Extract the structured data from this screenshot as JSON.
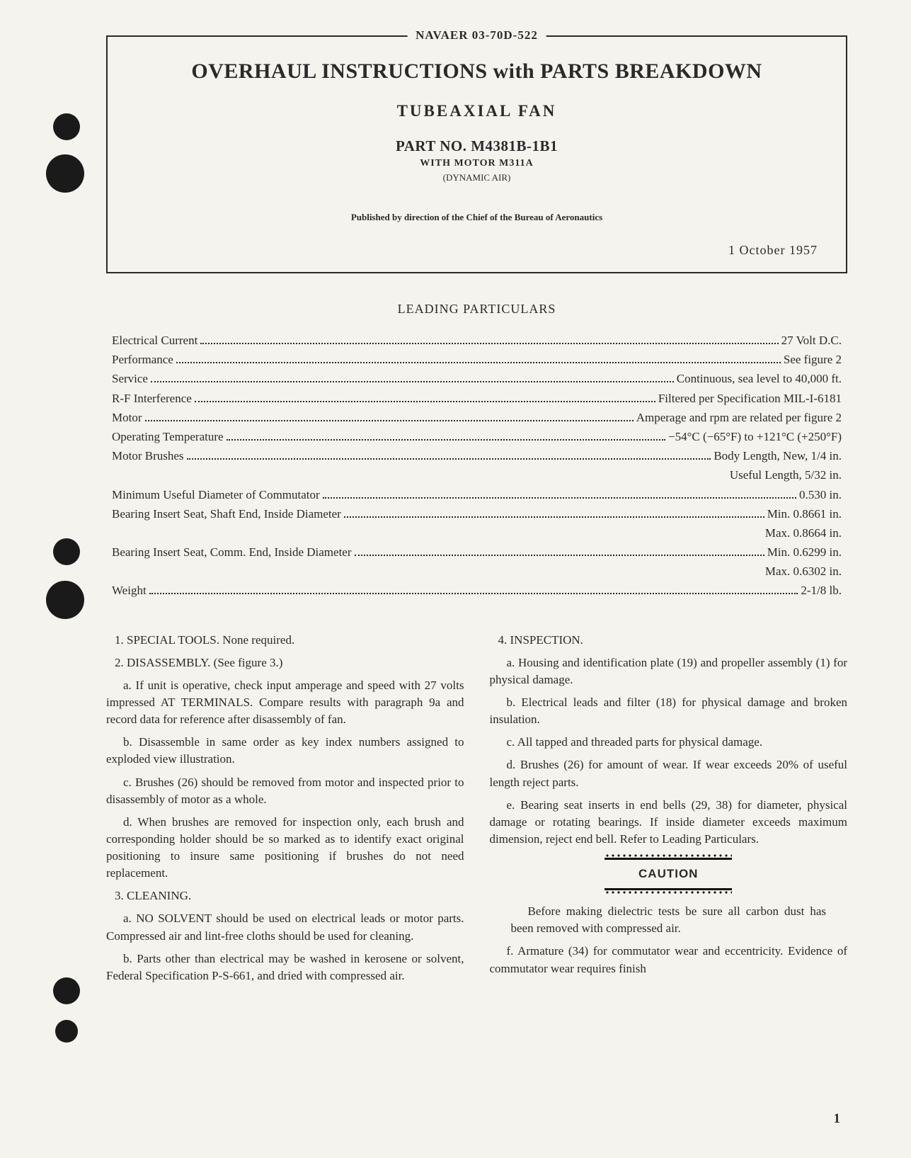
{
  "header": {
    "doc_id": "NAVAER 03-70D-522",
    "title": "OVERHAUL INSTRUCTIONS with PARTS BREAKDOWN",
    "subtitle": "TUBEAXIAL FAN",
    "part_no": "PART NO. M4381B-1B1",
    "with_motor": "WITH MOTOR M311A",
    "manufacturer": "(DYNAMIC AIR)",
    "published": "Published by direction of the Chief of the Bureau of Aeronautics",
    "date": "1 October 1957"
  },
  "particulars": {
    "heading": "LEADING PARTICULARS",
    "rows": [
      {
        "label": "Electrical Current",
        "value": "27 Volt D.C."
      },
      {
        "label": "Performance",
        "value": "See figure 2"
      },
      {
        "label": "Service",
        "value": "Continuous, sea level to 40,000 ft."
      },
      {
        "label": "R-F Interference",
        "value": "Filtered per Specification MIL-I-6181"
      },
      {
        "label": "Motor",
        "value": "Amperage and rpm are related per figure 2"
      },
      {
        "label": "Operating Temperature",
        "value": "−54°C (−65°F) to +121°C (+250°F)"
      },
      {
        "label": "Motor Brushes",
        "value": "Body Length, New, 1/4 in."
      },
      {
        "label": "",
        "value": "Useful Length, 5/32 in.",
        "indent": true
      },
      {
        "label": "Minimum Useful Diameter of Commutator",
        "value": "0.530 in."
      },
      {
        "label": "Bearing Insert Seat, Shaft End, Inside Diameter",
        "value": "Min. 0.8661 in."
      },
      {
        "label": "",
        "value": "Max. 0.8664 in.",
        "indent": true
      },
      {
        "label": "Bearing Insert Seat, Comm. End, Inside Diameter",
        "value": "Min. 0.6299 in."
      },
      {
        "label": "",
        "value": "Max. 0.6302 in.",
        "indent": true
      },
      {
        "label": "Weight",
        "value": "2-1/8 lb."
      }
    ]
  },
  "body": {
    "left": [
      {
        "cls": "num-head",
        "text": "1. SPECIAL TOOLS. None required."
      },
      {
        "cls": "num-head",
        "text": "2. DISASSEMBLY. (See figure 3.)"
      },
      {
        "cls": "sub",
        "text": "a. If unit is operative, check input amperage and speed with 27 volts impressed AT TERMINALS. Compare results with paragraph 9a and record data for reference after disassembly of fan."
      },
      {
        "cls": "sub",
        "text": "b. Disassemble in same order as key index numbers assigned to exploded view illustration."
      },
      {
        "cls": "sub",
        "text": "c. Brushes (26) should be removed from motor and inspected prior to disassembly of motor as a whole."
      },
      {
        "cls": "sub",
        "text": "d. When brushes are removed for inspection only, each brush and corresponding holder should be so marked as to identify exact original positioning to insure same positioning if brushes do not need replacement."
      },
      {
        "cls": "num-head",
        "text": "3. CLEANING."
      },
      {
        "cls": "sub",
        "text": "a. NO SOLVENT should be used on electrical leads or motor parts. Compressed air and lint-free cloths should be used for cleaning."
      },
      {
        "cls": "sub",
        "text": "b. Parts other than electrical may be washed in kerosene or solvent, Federal Specification P-S-661, and dried with compressed air."
      }
    ],
    "right_top": [
      {
        "cls": "num-head",
        "text": "4. INSPECTION."
      },
      {
        "cls": "sub",
        "text": "a. Housing and identification plate (19) and propeller assembly (1) for physical damage."
      },
      {
        "cls": "sub",
        "text": "b. Electrical leads and filter (18) for physical damage and broken insulation."
      },
      {
        "cls": "sub",
        "text": "c. All tapped and threaded parts for physical damage."
      },
      {
        "cls": "sub",
        "text": "d. Brushes (26) for amount of wear. If wear exceeds 20% of useful length reject parts."
      },
      {
        "cls": "sub",
        "text": "e. Bearing seat inserts in end bells (29, 38) for diameter, physical damage or rotating bearings. If inside diameter exceeds maximum dimension, reject end bell. Refer to Leading Particulars."
      }
    ],
    "caution": {
      "label": "CAUTION",
      "text": "Before making dielectric tests be sure all carbon dust has been removed with compressed air."
    },
    "right_bottom": [
      {
        "cls": "sub",
        "text": "f. Armature (34) for commutator wear and eccentricity. Evidence of commutator wear requires finish"
      }
    ]
  },
  "page_number": "1"
}
